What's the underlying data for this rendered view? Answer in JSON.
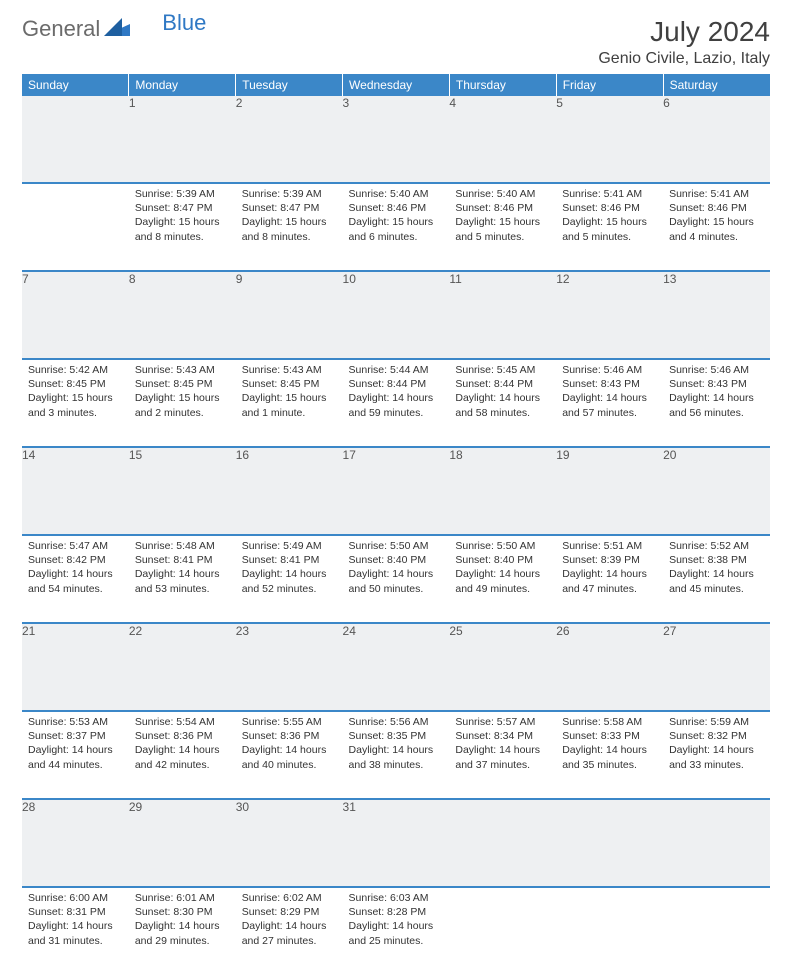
{
  "brand": {
    "part1": "General",
    "part2": "Blue"
  },
  "title": "July 2024",
  "location": "Genio Civile, Lazio, Italy",
  "colors": {
    "header_bg": "#3b87c8",
    "header_text": "#ffffff",
    "daynum_bg": "#eef0f2",
    "row_divider": "#3b87c8",
    "logo_gray": "#6b6b6b",
    "logo_blue": "#2f78c4",
    "body_text": "#333333"
  },
  "typography": {
    "title_fontsize": 28,
    "location_fontsize": 16,
    "header_fontsize": 12,
    "daynum_fontsize": 12,
    "cell_fontsize": 10.5
  },
  "weekdays": [
    "Sunday",
    "Monday",
    "Tuesday",
    "Wednesday",
    "Thursday",
    "Friday",
    "Saturday"
  ],
  "weeks": [
    {
      "nums": [
        "",
        "1",
        "2",
        "3",
        "4",
        "5",
        "6"
      ],
      "cells": [
        "",
        "Sunrise: 5:39 AM\nSunset: 8:47 PM\nDaylight: 15 hours and 8 minutes.",
        "Sunrise: 5:39 AM\nSunset: 8:47 PM\nDaylight: 15 hours and 8 minutes.",
        "Sunrise: 5:40 AM\nSunset: 8:46 PM\nDaylight: 15 hours and 6 minutes.",
        "Sunrise: 5:40 AM\nSunset: 8:46 PM\nDaylight: 15 hours and 5 minutes.",
        "Sunrise: 5:41 AM\nSunset: 8:46 PM\nDaylight: 15 hours and 5 minutes.",
        "Sunrise: 5:41 AM\nSunset: 8:46 PM\nDaylight: 15 hours and 4 minutes."
      ]
    },
    {
      "nums": [
        "7",
        "8",
        "9",
        "10",
        "11",
        "12",
        "13"
      ],
      "cells": [
        "Sunrise: 5:42 AM\nSunset: 8:45 PM\nDaylight: 15 hours and 3 minutes.",
        "Sunrise: 5:43 AM\nSunset: 8:45 PM\nDaylight: 15 hours and 2 minutes.",
        "Sunrise: 5:43 AM\nSunset: 8:45 PM\nDaylight: 15 hours and 1 minute.",
        "Sunrise: 5:44 AM\nSunset: 8:44 PM\nDaylight: 14 hours and 59 minutes.",
        "Sunrise: 5:45 AM\nSunset: 8:44 PM\nDaylight: 14 hours and 58 minutes.",
        "Sunrise: 5:46 AM\nSunset: 8:43 PM\nDaylight: 14 hours and 57 minutes.",
        "Sunrise: 5:46 AM\nSunset: 8:43 PM\nDaylight: 14 hours and 56 minutes."
      ]
    },
    {
      "nums": [
        "14",
        "15",
        "16",
        "17",
        "18",
        "19",
        "20"
      ],
      "cells": [
        "Sunrise: 5:47 AM\nSunset: 8:42 PM\nDaylight: 14 hours and 54 minutes.",
        "Sunrise: 5:48 AM\nSunset: 8:41 PM\nDaylight: 14 hours and 53 minutes.",
        "Sunrise: 5:49 AM\nSunset: 8:41 PM\nDaylight: 14 hours and 52 minutes.",
        "Sunrise: 5:50 AM\nSunset: 8:40 PM\nDaylight: 14 hours and 50 minutes.",
        "Sunrise: 5:50 AM\nSunset: 8:40 PM\nDaylight: 14 hours and 49 minutes.",
        "Sunrise: 5:51 AM\nSunset: 8:39 PM\nDaylight: 14 hours and 47 minutes.",
        "Sunrise: 5:52 AM\nSunset: 8:38 PM\nDaylight: 14 hours and 45 minutes."
      ]
    },
    {
      "nums": [
        "21",
        "22",
        "23",
        "24",
        "25",
        "26",
        "27"
      ],
      "cells": [
        "Sunrise: 5:53 AM\nSunset: 8:37 PM\nDaylight: 14 hours and 44 minutes.",
        "Sunrise: 5:54 AM\nSunset: 8:36 PM\nDaylight: 14 hours and 42 minutes.",
        "Sunrise: 5:55 AM\nSunset: 8:36 PM\nDaylight: 14 hours and 40 minutes.",
        "Sunrise: 5:56 AM\nSunset: 8:35 PM\nDaylight: 14 hours and 38 minutes.",
        "Sunrise: 5:57 AM\nSunset: 8:34 PM\nDaylight: 14 hours and 37 minutes.",
        "Sunrise: 5:58 AM\nSunset: 8:33 PM\nDaylight: 14 hours and 35 minutes.",
        "Sunrise: 5:59 AM\nSunset: 8:32 PM\nDaylight: 14 hours and 33 minutes."
      ]
    },
    {
      "nums": [
        "28",
        "29",
        "30",
        "31",
        "",
        "",
        ""
      ],
      "cells": [
        "Sunrise: 6:00 AM\nSunset: 8:31 PM\nDaylight: 14 hours and 31 minutes.",
        "Sunrise: 6:01 AM\nSunset: 8:30 PM\nDaylight: 14 hours and 29 minutes.",
        "Sunrise: 6:02 AM\nSunset: 8:29 PM\nDaylight: 14 hours and 27 minutes.",
        "Sunrise: 6:03 AM\nSunset: 8:28 PM\nDaylight: 14 hours and 25 minutes.",
        "",
        "",
        ""
      ]
    }
  ]
}
